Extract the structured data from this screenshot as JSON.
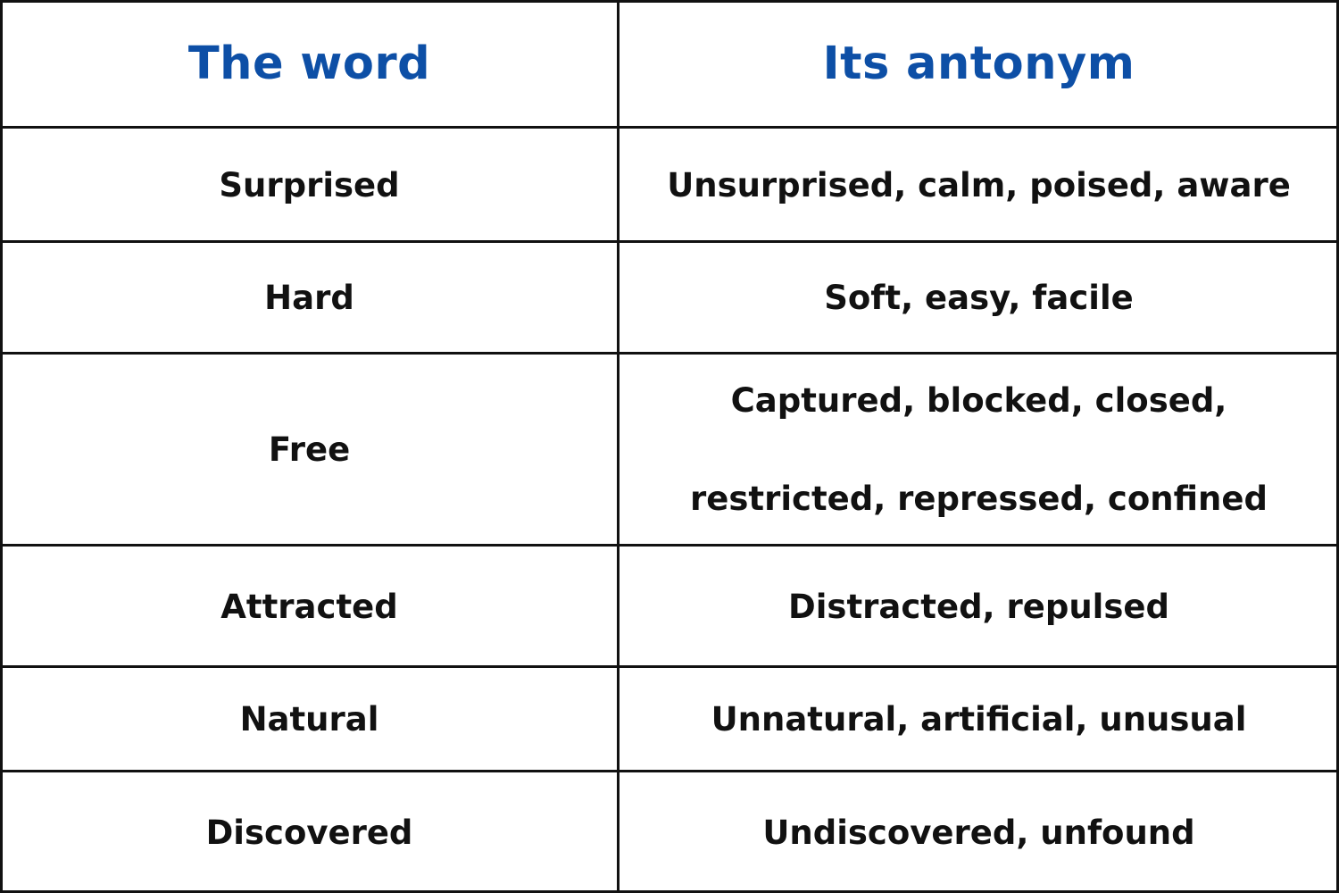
{
  "table": {
    "headers": {
      "word": "The word",
      "antonym": "Its antonym"
    },
    "rows": [
      {
        "word": "Surprised",
        "antonym": "Unsurprised, calm, poised, aware"
      },
      {
        "word": "Hard",
        "antonym": "Soft, easy, facile"
      },
      {
        "word": "Free",
        "antonym": "Captured, blocked, closed, restricted, repressed, confined"
      },
      {
        "word": "Attracted",
        "antonym": "Distracted, repulsed"
      },
      {
        "word": "Natural",
        "antonym": "Unnatural, artificial, unusual"
      },
      {
        "word": "Discovered",
        "antonym": "Undiscovered, unfound"
      }
    ]
  },
  "colors": {
    "header_text": "#0d4fa6",
    "body_text": "#111111",
    "grid": "#111111"
  }
}
